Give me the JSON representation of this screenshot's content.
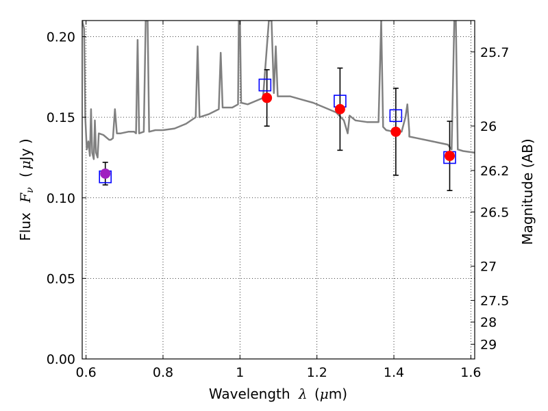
{
  "chart_data": {
    "type": "scatter",
    "xlabel_text": "Wavelength",
    "xlabel_symbol": "λ",
    "xlabel_unit_open": "(",
    "xlabel_unit_mu": "μ",
    "xlabel_unit_close": "m)",
    "ylabel_text": "Flux",
    "ylabel_symbol": "F",
    "ylabel_sub": "ν",
    "ylabel_unit_open": "(",
    "ylabel_unit_mu": "μ",
    "ylabel_unit_close": "Jy )",
    "ylabel_right": "Magnitude (AB)",
    "xlim": [
      0.59,
      1.61
    ],
    "ylim": [
      0.0,
      0.21
    ],
    "x_ticks": [
      0.6,
      0.8,
      1.0,
      1.2,
      1.4,
      1.6
    ],
    "x_tick_labels": [
      "0.6",
      "0.8",
      "1",
      "1.2",
      "1.4",
      "1.6"
    ],
    "y_ticks": [
      0.0,
      0.05,
      0.1,
      0.15,
      0.2
    ],
    "y_tick_labels": [
      "0.00",
      "0.05",
      "0.10",
      "0.15",
      "0.20"
    ],
    "right_ticks": [
      {
        "label": "25.7",
        "mag": 25.7
      },
      {
        "label": "26",
        "mag": 26.0
      },
      {
        "label": "26.2",
        "mag": 26.23
      },
      {
        "label": "26.5",
        "mag": 26.5
      },
      {
        "label": "27",
        "mag": 27.0
      },
      {
        "label": "27.5",
        "mag": 27.5
      },
      {
        "label": "28",
        "mag": 28.0
      },
      {
        "label": "29",
        "mag": 29.0
      }
    ],
    "grid": true,
    "colors": {
      "spectrum": "#808080",
      "observed": "#ff0000",
      "observed_optical": "#a020c0",
      "model": "#0000ff",
      "errorbar": "#000000"
    },
    "observed_points": [
      {
        "x": 0.65,
        "y": 0.115,
        "yerr": 0.007,
        "color": "observed_optical"
      },
      {
        "x": 1.07,
        "y": 0.162,
        "yerr": 0.0175,
        "color": "observed"
      },
      {
        "x": 1.26,
        "y": 0.155,
        "yerr": 0.0255,
        "color": "observed"
      },
      {
        "x": 1.405,
        "y": 0.141,
        "yerr": 0.027,
        "color": "observed"
      },
      {
        "x": 1.545,
        "y": 0.126,
        "yerr": 0.0215,
        "color": "observed"
      }
    ],
    "model_points": [
      {
        "x": 0.65,
        "y": 0.113
      },
      {
        "x": 1.065,
        "y": 0.17
      },
      {
        "x": 1.26,
        "y": 0.16
      },
      {
        "x": 1.405,
        "y": 0.151
      },
      {
        "x": 1.545,
        "y": 0.125
      }
    ],
    "spectrum": [
      [
        0.59,
        0.21
      ],
      [
        0.595,
        0.205
      ],
      [
        0.598,
        0.15
      ],
      [
        0.602,
        0.13
      ],
      [
        0.606,
        0.135
      ],
      [
        0.61,
        0.126
      ],
      [
        0.613,
        0.155
      ],
      [
        0.616,
        0.128
      ],
      [
        0.62,
        0.124
      ],
      [
        0.623,
        0.148
      ],
      [
        0.626,
        0.128
      ],
      [
        0.63,
        0.125
      ],
      [
        0.633,
        0.14
      ],
      [
        0.645,
        0.139
      ],
      [
        0.66,
        0.136
      ],
      [
        0.664,
        0.136
      ],
      [
        0.67,
        0.137
      ],
      [
        0.675,
        0.155
      ],
      [
        0.68,
        0.14
      ],
      [
        0.69,
        0.14
      ],
      [
        0.71,
        0.141
      ],
      [
        0.725,
        0.141
      ],
      [
        0.73,
        0.14
      ],
      [
        0.734,
        0.198
      ],
      [
        0.738,
        0.14
      ],
      [
        0.75,
        0.141
      ],
      [
        0.755,
        0.21
      ],
      [
        0.76,
        0.21
      ],
      [
        0.764,
        0.141
      ],
      [
        0.78,
        0.142
      ],
      [
        0.8,
        0.142
      ],
      [
        0.83,
        0.143
      ],
      [
        0.86,
        0.146
      ],
      [
        0.885,
        0.15
      ],
      [
        0.89,
        0.194
      ],
      [
        0.895,
        0.15
      ],
      [
        0.92,
        0.152
      ],
      [
        0.945,
        0.155
      ],
      [
        0.95,
        0.19
      ],
      [
        0.955,
        0.156
      ],
      [
        0.98,
        0.156
      ],
      [
        0.995,
        0.158
      ],
      [
        0.997,
        0.21
      ],
      [
        1.0,
        0.21
      ],
      [
        1.003,
        0.159
      ],
      [
        1.02,
        0.158
      ],
      [
        1.04,
        0.16
      ],
      [
        1.06,
        0.162
      ],
      [
        1.075,
        0.21
      ],
      [
        1.082,
        0.21
      ],
      [
        1.088,
        0.165
      ],
      [
        1.093,
        0.194
      ],
      [
        1.098,
        0.163
      ],
      [
        1.13,
        0.163
      ],
      [
        1.16,
        0.161
      ],
      [
        1.19,
        0.159
      ],
      [
        1.22,
        0.156
      ],
      [
        1.25,
        0.153
      ],
      [
        1.27,
        0.148
      ],
      [
        1.28,
        0.14
      ],
      [
        1.285,
        0.151
      ],
      [
        1.3,
        0.148
      ],
      [
        1.33,
        0.147
      ],
      [
        1.36,
        0.147
      ],
      [
        1.367,
        0.21
      ],
      [
        1.372,
        0.144
      ],
      [
        1.38,
        0.142
      ],
      [
        1.4,
        0.141
      ],
      [
        1.42,
        0.141
      ],
      [
        1.43,
        0.15
      ],
      [
        1.435,
        0.158
      ],
      [
        1.44,
        0.141
      ],
      [
        1.44,
        0.138
      ],
      [
        1.46,
        0.137
      ],
      [
        1.5,
        0.135
      ],
      [
        1.54,
        0.133
      ],
      [
        1.55,
        0.13
      ],
      [
        1.557,
        0.21
      ],
      [
        1.561,
        0.21
      ],
      [
        1.566,
        0.13
      ],
      [
        1.58,
        0.129
      ],
      [
        1.61,
        0.128
      ]
    ]
  }
}
